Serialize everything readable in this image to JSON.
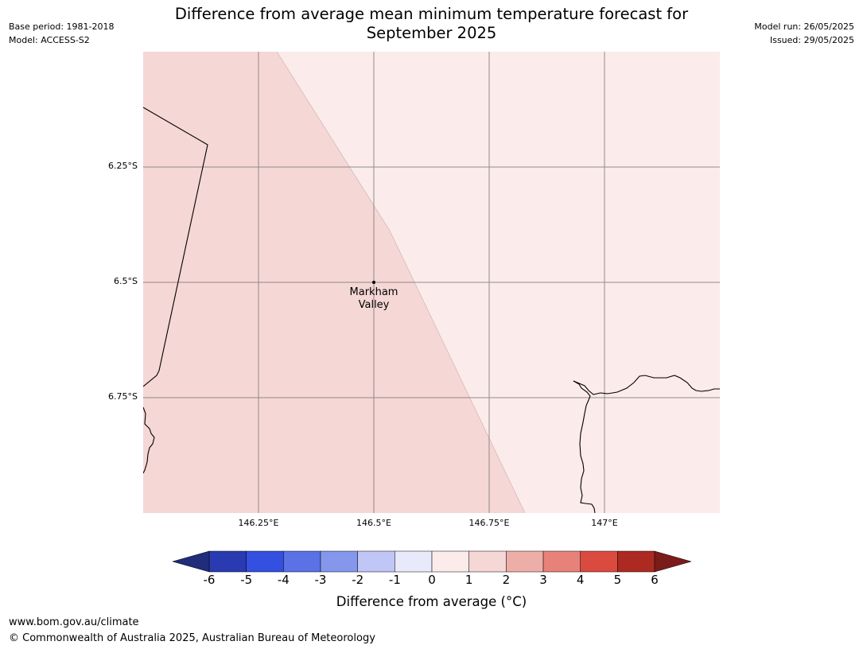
{
  "title_line1": "Difference from average mean minimum temperature forecast for",
  "title_line2": "September 2025",
  "meta_left": {
    "base_period": "Base period: 1981-2018",
    "model": "Model: ACCESS-S2"
  },
  "meta_right": {
    "model_run": "Model run: 26/05/2025",
    "issued": "Issued: 29/05/2025"
  },
  "map": {
    "lat_labels": [
      "6.25°S",
      "6.5°S",
      "6.75°S"
    ],
    "lon_labels": [
      "146.25°E",
      "146.5°E",
      "146.75°E",
      "147°E"
    ],
    "place": {
      "name_line1": "Markham",
      "name_line2": "Valley"
    },
    "regions": [
      {
        "category": "1 to 2",
        "color": "#f5d7d5"
      },
      {
        "category": "0 to 1",
        "color": "#fbebea"
      }
    ]
  },
  "colorbar": {
    "ticks": [
      "-6",
      "-5",
      "-4",
      "-3",
      "-2",
      "-1",
      "0",
      "1",
      "2",
      "3",
      "4",
      "5",
      "6"
    ],
    "colors": [
      "#2a3ab1",
      "#3350e0",
      "#5b72e6",
      "#8597ec",
      "#c0c6f5",
      "#e8eafc",
      "#fbebea",
      "#f5d7d5",
      "#eeaea8",
      "#e7827b",
      "#db4a3f",
      "#ad2a22"
    ],
    "under_color": "#1f2d7a",
    "over_color": "#7a1c19",
    "label": "Difference from average (°C)"
  },
  "footer": {
    "url": "www.bom.gov.au/climate",
    "copyright": "© Commonwealth of Australia 2025, Australian Bureau of Meteorology"
  }
}
